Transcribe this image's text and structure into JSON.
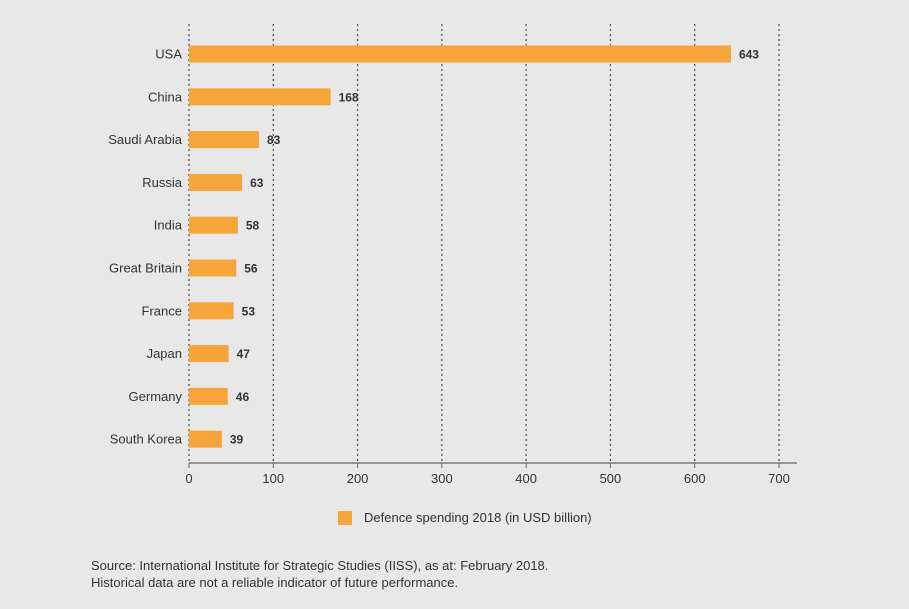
{
  "chart_data": {
    "type": "bar",
    "orientation": "horizontal",
    "categories": [
      "USA",
      "China",
      "Saudi Arabia",
      "Russia",
      "India",
      "Great Britain",
      "France",
      "Japan",
      "Germany",
      "South Korea"
    ],
    "series": [
      {
        "name": "Defence spending 2018 (in USD billion)",
        "values": [
          643,
          168,
          83,
          63,
          58,
          56,
          53,
          47,
          46,
          39
        ],
        "color": "#f5a53a"
      }
    ],
    "value_labels": [
      "643",
      "168",
      "83",
      "63",
      "58",
      "56",
      "53",
      "47",
      "46",
      "39"
    ],
    "xlim": [
      0,
      700
    ],
    "xticks": [
      0,
      100,
      200,
      300,
      400,
      500,
      600,
      700
    ],
    "xtick_labels": [
      "0",
      "100",
      "200",
      "300",
      "400",
      "500",
      "600",
      "700"
    ],
    "grid": "vertical dotted",
    "legend_position": "bottom-center",
    "title": "",
    "xlabel": "",
    "ylabel": ""
  },
  "legend": {
    "label": "Defence spending 2018 (in USD billion)",
    "color": "#f5a53a"
  },
  "footnote": {
    "line1": "Source: International Institute for Strategic Studies (IISS), as at: February 2018.",
    "line2": "Historical data are not a reliable indicator of future performance."
  },
  "colors": {
    "background": "#e8e8e8",
    "bar": "#f5a53a",
    "text": "#333333",
    "grid": "#555555"
  }
}
